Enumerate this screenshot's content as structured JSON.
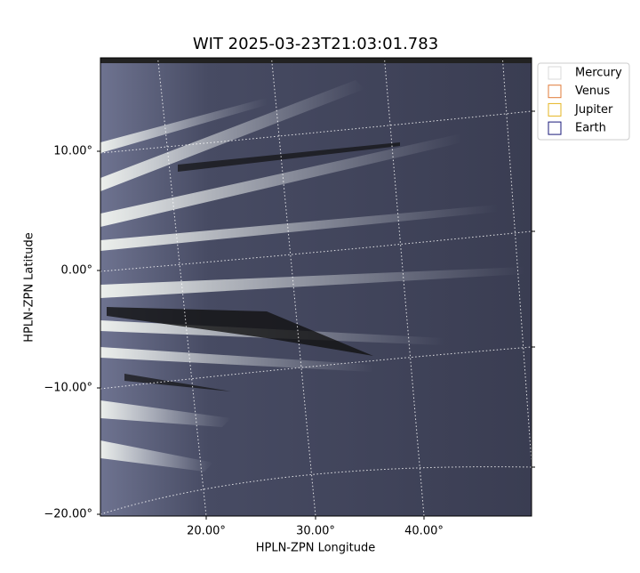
{
  "title": "WIT 2025-03-23T21:03:01.783",
  "x_axis": {
    "label": "HPLN-ZPN Longitude",
    "ticks": [
      "20.00°",
      "30.00°",
      "40.00°"
    ]
  },
  "y_axis": {
    "label": "HPLN-ZPN Latitude",
    "ticks": [
      "10.00°",
      "0.00°",
      "−10.00°",
      "−20.00°"
    ]
  },
  "legend": [
    {
      "name": "Mercury",
      "color": "#d9d9d9"
    },
    {
      "name": "Venus",
      "color": "#e07b39"
    },
    {
      "name": "Jupiter",
      "color": "#e6b422"
    },
    {
      "name": "Earth",
      "color": "#1a1a7a"
    }
  ]
}
